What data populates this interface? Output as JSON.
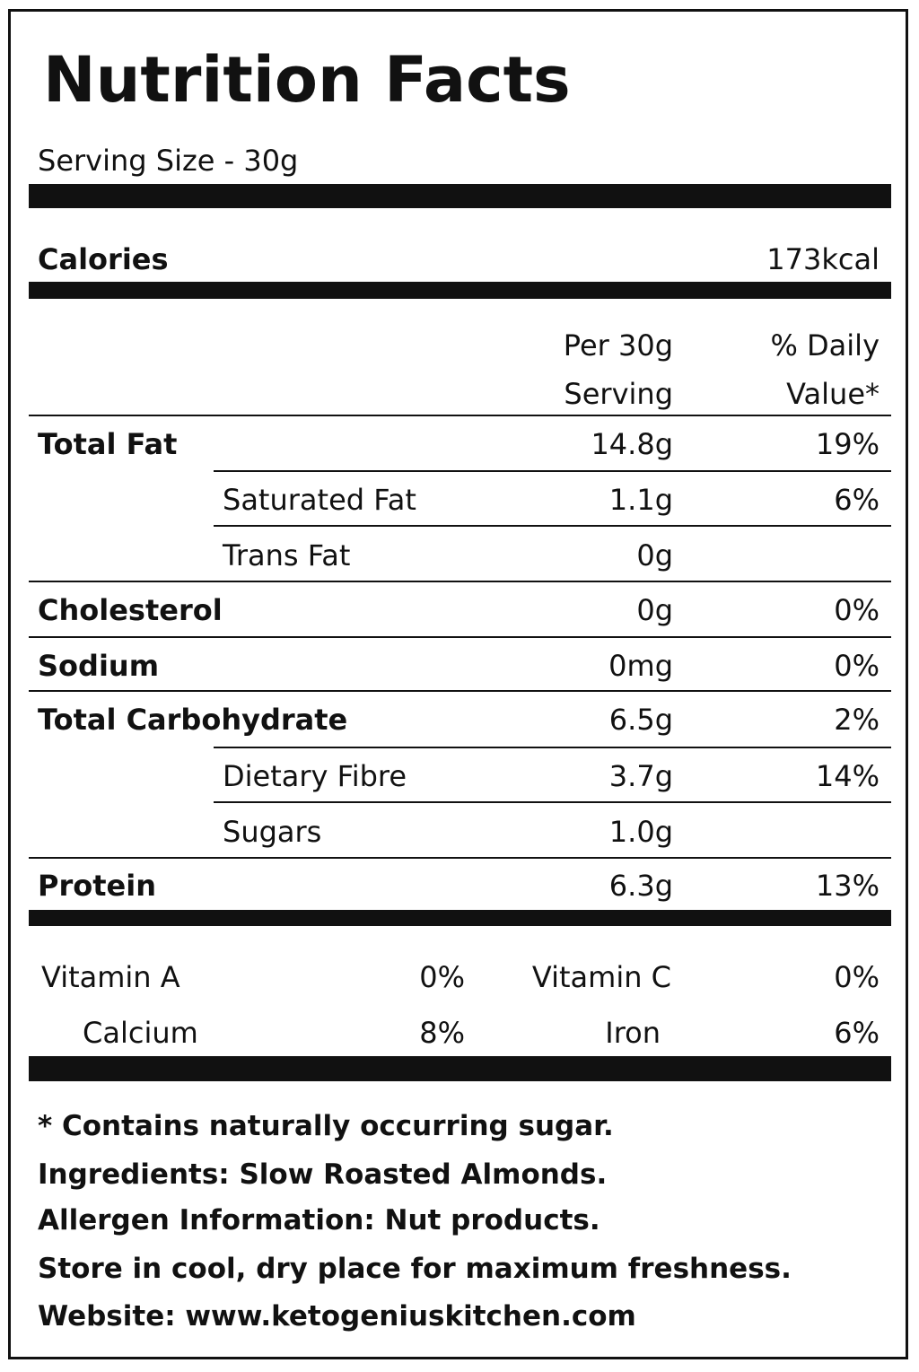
{
  "title": "Nutrition Facts",
  "serving_size": "Serving Size - 30g",
  "calories": {
    "label": "Calories",
    "value": "173kcal"
  },
  "column_headers": {
    "per_line1": "Per 30g",
    "per_line2": "Serving",
    "dv_line1": "% Daily",
    "dv_line2": "Value*"
  },
  "nutrients": {
    "total_fat": {
      "label": "Total Fat",
      "amount": "14.8g",
      "dv": "19%"
    },
    "saturated_fat": {
      "label": "Saturated Fat",
      "amount": "1.1g",
      "dv": "6%"
    },
    "trans_fat": {
      "label": "Trans Fat",
      "amount": "0g",
      "dv": ""
    },
    "cholesterol": {
      "label": "Cholesterol",
      "amount": "0g",
      "dv": "0%"
    },
    "sodium": {
      "label": "Sodium",
      "amount": "0mg",
      "dv": "0%"
    },
    "total_carbohydrate": {
      "label": "Total Carbohydrate",
      "amount": "6.5g",
      "dv": "2%"
    },
    "dietary_fibre": {
      "label": "Dietary Fibre",
      "amount": "3.7g",
      "dv": "14%"
    },
    "sugars": {
      "label": "Sugars",
      "amount": "1.0g",
      "dv": ""
    },
    "protein": {
      "label": "Protein",
      "amount": "6.3g",
      "dv": "13%"
    }
  },
  "vitamins": {
    "vitamin_a": {
      "label": "Vitamin A",
      "value": "0%"
    },
    "vitamin_c": {
      "label": "Vitamin C",
      "value": "0%"
    },
    "calcium": {
      "label": "Calcium",
      "value": "8%"
    },
    "iron": {
      "label": "Iron",
      "value": "6%"
    }
  },
  "footer": {
    "note": "* Contains naturally occurring sugar.",
    "ingredients": "Ingredients: Slow Roasted Almonds.",
    "allergen": "Allergen Information: Nut products.",
    "storage": "Store in cool, dry place for maximum freshness.",
    "website": "Website: www.ketogeniuskitchen.com"
  },
  "colors": {
    "ink": "#111111",
    "background": "#ffffff"
  }
}
